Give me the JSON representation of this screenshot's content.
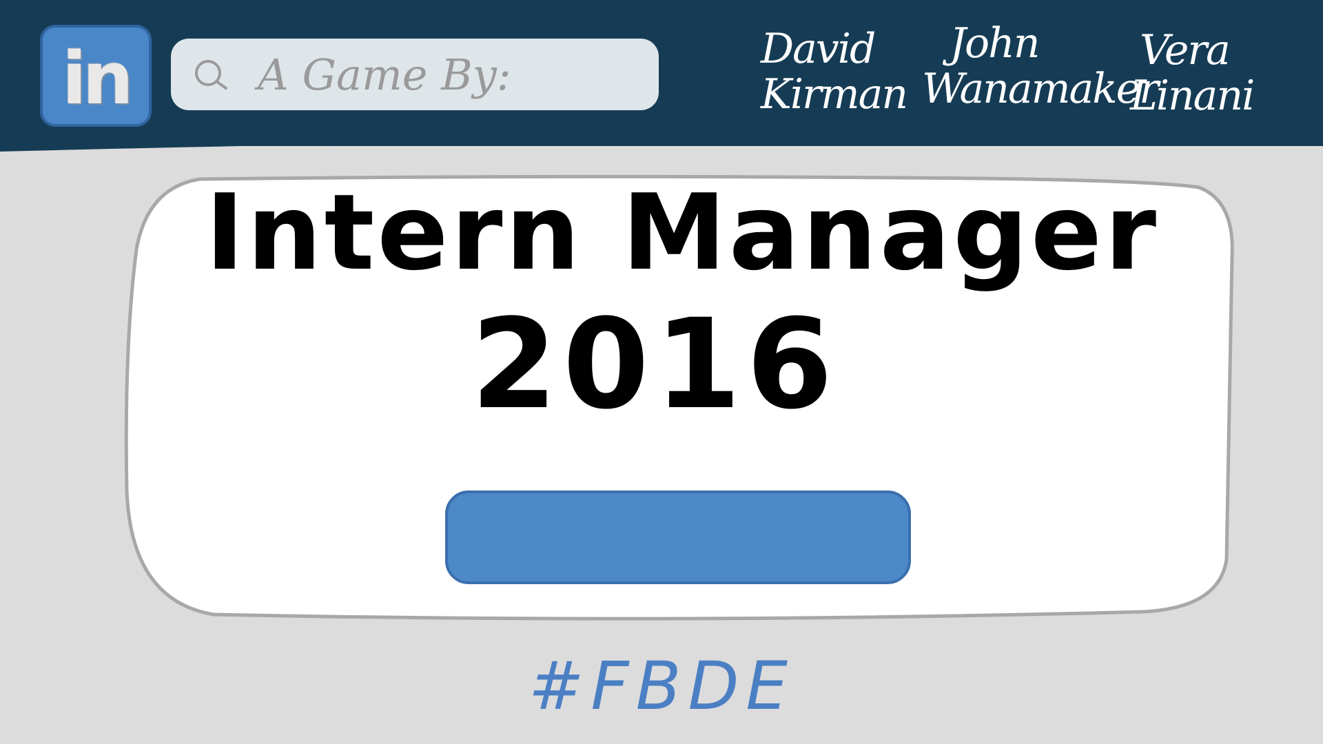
{
  "header": {
    "logo_text": "in",
    "search_placeholder": "A Game By:",
    "authors": [
      {
        "first": "David",
        "last": "Kirman"
      },
      {
        "first": "John",
        "last": "Wanamaker"
      },
      {
        "first": "Vera",
        "last": "Linani"
      }
    ]
  },
  "main": {
    "title_line_1": "Intern Manager",
    "title_line_2": "2016",
    "start_button_label": ""
  },
  "footer": {
    "hashtag": "#FBDE"
  },
  "colors": {
    "header_bg": "#163c55",
    "page_bg": "#dcdcdc",
    "logo_blue": "#4a87c8",
    "button_blue": "#4d88c8",
    "hashtag_blue": "#4b7fc4",
    "search_bg": "#dfe6ea"
  },
  "icons": {
    "logo": "linkedin-logo-icon",
    "search": "search-icon"
  }
}
